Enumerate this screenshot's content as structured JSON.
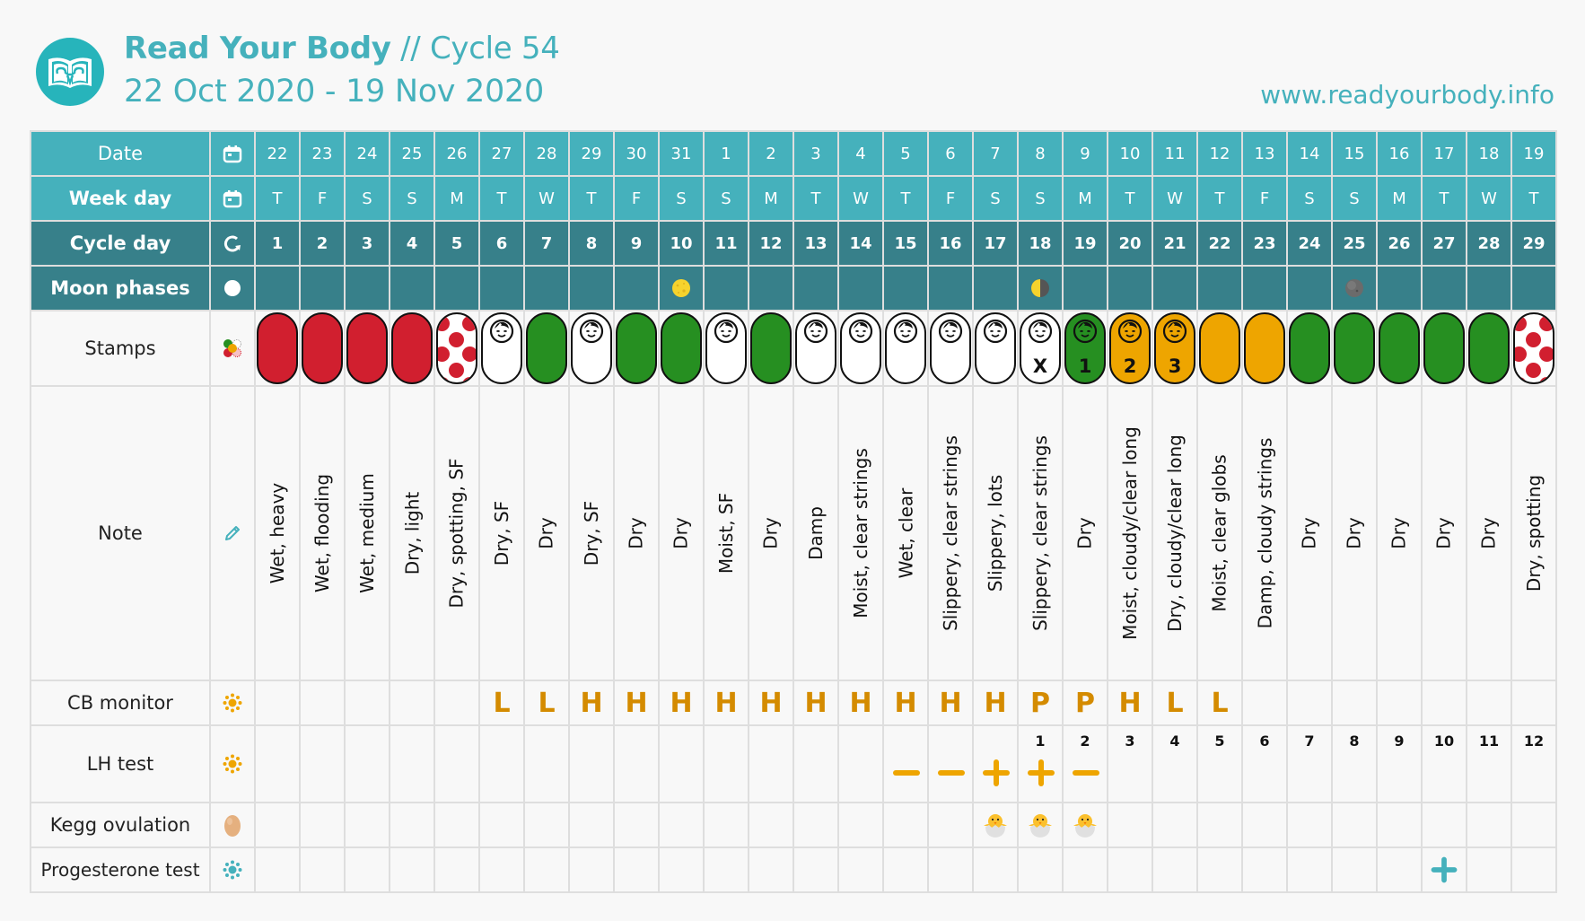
{
  "header": {
    "brand": "Read Your Body",
    "separator": " // ",
    "cycle": "Cycle 54",
    "date_range": "22 Oct 2020 - 19 Nov 2020",
    "website": "www.readyourbody.info"
  },
  "colors": {
    "teal_light": "#45b1bc",
    "teal_dark": "#37808a",
    "red": "#d11f2f",
    "green": "#268f21",
    "orange": "#eea500",
    "cb_text": "#d48b00",
    "progesterone": "#45b1bc"
  },
  "rows": {
    "date": {
      "label": "Date",
      "icon": "calendar-icon"
    },
    "weekday": {
      "label": "Week day",
      "icon": "calendar-icon"
    },
    "cycle_day": {
      "label": "Cycle day",
      "icon": "cycle-refresh-icon"
    },
    "moon": {
      "label": "Moon phases",
      "icon": "moon-circle-icon"
    },
    "stamps": {
      "label": "Stamps",
      "icon": "stamps-palette-icon"
    },
    "note": {
      "label": "Note",
      "icon": "pencil-icon"
    },
    "cb": {
      "label": "CB monitor",
      "icon": "sun-orange-icon"
    },
    "lh": {
      "label": "LH test",
      "icon": "sun-orange-icon"
    },
    "kegg": {
      "label": "Kegg ovulation",
      "icon": "egg-icon"
    },
    "prog": {
      "label": "Progesterone test",
      "icon": "sun-teal-icon"
    }
  },
  "days": [
    {
      "date": "22",
      "weekday": "T",
      "cycle": "1",
      "moon": "",
      "stamp": "red",
      "stamp_mark": "",
      "note": "Wet, heavy",
      "cb": "",
      "lh_day": "",
      "lh": "",
      "kegg": false,
      "prog": ""
    },
    {
      "date": "23",
      "weekday": "F",
      "cycle": "2",
      "moon": "",
      "stamp": "red",
      "stamp_mark": "",
      "note": "Wet, flooding",
      "cb": "",
      "lh_day": "",
      "lh": "",
      "kegg": false,
      "prog": ""
    },
    {
      "date": "24",
      "weekday": "S",
      "cycle": "3",
      "moon": "",
      "stamp": "red",
      "stamp_mark": "",
      "note": "Wet, medium",
      "cb": "",
      "lh_day": "",
      "lh": "",
      "kegg": false,
      "prog": ""
    },
    {
      "date": "25",
      "weekday": "S",
      "cycle": "4",
      "moon": "",
      "stamp": "red",
      "stamp_mark": "",
      "note": "Dry, light",
      "cb": "",
      "lh_day": "",
      "lh": "",
      "kegg": false,
      "prog": ""
    },
    {
      "date": "26",
      "weekday": "M",
      "cycle": "5",
      "moon": "",
      "stamp": "spotted",
      "stamp_mark": "",
      "note": "Dry, spotting, SF",
      "cb": "",
      "lh_day": "",
      "lh": "",
      "kegg": false,
      "prog": ""
    },
    {
      "date": "27",
      "weekday": "T",
      "cycle": "6",
      "moon": "",
      "stamp": "white-baby",
      "stamp_mark": "",
      "note": "Dry, SF",
      "cb": "L",
      "lh_day": "",
      "lh": "",
      "kegg": false,
      "prog": ""
    },
    {
      "date": "28",
      "weekday": "W",
      "cycle": "7",
      "moon": "",
      "stamp": "green",
      "stamp_mark": "",
      "note": "Dry",
      "cb": "L",
      "lh_day": "",
      "lh": "",
      "kegg": false,
      "prog": ""
    },
    {
      "date": "29",
      "weekday": "T",
      "cycle": "8",
      "moon": "",
      "stamp": "white-baby",
      "stamp_mark": "",
      "note": "Dry, SF",
      "cb": "H",
      "lh_day": "",
      "lh": "",
      "kegg": false,
      "prog": ""
    },
    {
      "date": "30",
      "weekday": "F",
      "cycle": "9",
      "moon": "",
      "stamp": "green",
      "stamp_mark": "",
      "note": "Dry",
      "cb": "H",
      "lh_day": "",
      "lh": "",
      "kegg": false,
      "prog": ""
    },
    {
      "date": "31",
      "weekday": "S",
      "cycle": "10",
      "moon": "full",
      "stamp": "green",
      "stamp_mark": "",
      "note": "Dry",
      "cb": "H",
      "lh_day": "",
      "lh": "",
      "kegg": false,
      "prog": ""
    },
    {
      "date": "1",
      "weekday": "S",
      "cycle": "11",
      "moon": "",
      "stamp": "white-baby",
      "stamp_mark": "",
      "note": "Moist, SF",
      "cb": "H",
      "lh_day": "",
      "lh": "",
      "kegg": false,
      "prog": ""
    },
    {
      "date": "2",
      "weekday": "M",
      "cycle": "12",
      "moon": "",
      "stamp": "green",
      "stamp_mark": "",
      "note": "Dry",
      "cb": "H",
      "lh_day": "",
      "lh": "",
      "kegg": false,
      "prog": ""
    },
    {
      "date": "3",
      "weekday": "T",
      "cycle": "13",
      "moon": "",
      "stamp": "white-baby",
      "stamp_mark": "",
      "note": "Damp",
      "cb": "H",
      "lh_day": "",
      "lh": "",
      "kegg": false,
      "prog": ""
    },
    {
      "date": "4",
      "weekday": "W",
      "cycle": "14",
      "moon": "",
      "stamp": "white-baby",
      "stamp_mark": "",
      "note": "Moist, clear strings",
      "cb": "H",
      "lh_day": "",
      "lh": "",
      "kegg": false,
      "prog": ""
    },
    {
      "date": "5",
      "weekday": "T",
      "cycle": "15",
      "moon": "",
      "stamp": "white-baby",
      "stamp_mark": "",
      "note": "Wet, clear",
      "cb": "H",
      "lh_day": "",
      "lh": "negative",
      "kegg": false,
      "prog": ""
    },
    {
      "date": "6",
      "weekday": "F",
      "cycle": "16",
      "moon": "",
      "stamp": "white-baby",
      "stamp_mark": "",
      "note": "Slippery, clear strings",
      "cb": "H",
      "lh_day": "",
      "lh": "negative",
      "kegg": false,
      "prog": ""
    },
    {
      "date": "7",
      "weekday": "S",
      "cycle": "17",
      "moon": "",
      "stamp": "white-baby",
      "stamp_mark": "",
      "note": "Slippery, lots",
      "cb": "H",
      "lh_day": "",
      "lh": "positive",
      "kegg": true,
      "prog": ""
    },
    {
      "date": "8",
      "weekday": "S",
      "cycle": "18",
      "moon": "last-quarter",
      "stamp": "white-baby",
      "stamp_mark": "X",
      "note": "Slippery, clear strings",
      "cb": "P",
      "lh_day": "1",
      "lh": "positive",
      "kegg": true,
      "prog": ""
    },
    {
      "date": "9",
      "weekday": "M",
      "cycle": "19",
      "moon": "",
      "stamp": "green-baby",
      "stamp_mark": "1",
      "note": "Dry",
      "cb": "P",
      "lh_day": "2",
      "lh": "negative",
      "kegg": true,
      "prog": ""
    },
    {
      "date": "10",
      "weekday": "T",
      "cycle": "20",
      "moon": "",
      "stamp": "orange-baby",
      "stamp_mark": "2",
      "note": "Moist, cloudy/clear long",
      "cb": "H",
      "lh_day": "3",
      "lh": "",
      "kegg": false,
      "prog": ""
    },
    {
      "date": "11",
      "weekday": "W",
      "cycle": "21",
      "moon": "",
      "stamp": "orange-baby",
      "stamp_mark": "3",
      "note": "Dry, cloudy/clear long",
      "cb": "L",
      "lh_day": "4",
      "lh": "",
      "kegg": false,
      "prog": ""
    },
    {
      "date": "12",
      "weekday": "T",
      "cycle": "22",
      "moon": "",
      "stamp": "orange",
      "stamp_mark": "",
      "note": "Moist, clear globs",
      "cb": "L",
      "lh_day": "5",
      "lh": "",
      "kegg": false,
      "prog": ""
    },
    {
      "date": "13",
      "weekday": "F",
      "cycle": "23",
      "moon": "",
      "stamp": "orange",
      "stamp_mark": "",
      "note": "Damp, cloudy strings",
      "cb": "",
      "lh_day": "6",
      "lh": "",
      "kegg": false,
      "prog": ""
    },
    {
      "date": "14",
      "weekday": "S",
      "cycle": "24",
      "moon": "",
      "stamp": "green",
      "stamp_mark": "",
      "note": "Dry",
      "cb": "",
      "lh_day": "7",
      "lh": "",
      "kegg": false,
      "prog": ""
    },
    {
      "date": "15",
      "weekday": "S",
      "cycle": "25",
      "moon": "new",
      "stamp": "green",
      "stamp_mark": "",
      "note": "Dry",
      "cb": "",
      "lh_day": "8",
      "lh": "",
      "kegg": false,
      "prog": ""
    },
    {
      "date": "16",
      "weekday": "M",
      "cycle": "26",
      "moon": "",
      "stamp": "green",
      "stamp_mark": "",
      "note": "Dry",
      "cb": "",
      "lh_day": "9",
      "lh": "",
      "kegg": false,
      "prog": ""
    },
    {
      "date": "17",
      "weekday": "T",
      "cycle": "27",
      "moon": "",
      "stamp": "green",
      "stamp_mark": "",
      "note": "Dry",
      "cb": "",
      "lh_day": "10",
      "lh": "",
      "kegg": false,
      "prog": "positive"
    },
    {
      "date": "18",
      "weekday": "W",
      "cycle": "28",
      "moon": "",
      "stamp": "green",
      "stamp_mark": "",
      "note": "Dry",
      "cb": "",
      "lh_day": "11",
      "lh": "",
      "kegg": false,
      "prog": ""
    },
    {
      "date": "19",
      "weekday": "T",
      "cycle": "29",
      "moon": "",
      "stamp": "spotted",
      "stamp_mark": "",
      "note": "Dry, spotting",
      "cb": "",
      "lh_day": "12",
      "lh": "",
      "kegg": false,
      "prog": ""
    }
  ]
}
